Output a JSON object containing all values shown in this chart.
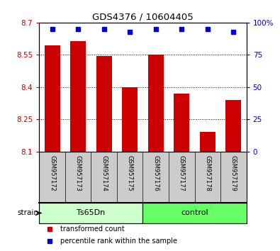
{
  "title": "GDS4376 / 10604405",
  "samples": [
    "GSM957172",
    "GSM957173",
    "GSM957174",
    "GSM957175",
    "GSM957176",
    "GSM957177",
    "GSM957178",
    "GSM957179"
  ],
  "red_values": [
    8.595,
    8.615,
    8.545,
    8.4,
    8.55,
    8.37,
    8.19,
    8.34
  ],
  "blue_values": [
    95,
    95,
    95,
    93,
    95,
    95,
    95,
    93
  ],
  "ylim_left": [
    8.1,
    8.7
  ],
  "ylim_right": [
    0,
    100
  ],
  "yticks_left": [
    8.1,
    8.25,
    8.4,
    8.55,
    8.7
  ],
  "yticks_right": [
    0,
    25,
    50,
    75,
    100
  ],
  "ytick_labels_left": [
    "8.1",
    "8.25",
    "8.4",
    "8.55",
    "8.7"
  ],
  "ytick_labels_right": [
    "0",
    "25",
    "50",
    "75",
    "100%"
  ],
  "bar_color": "#cc0000",
  "dot_color": "#0000cc",
  "group1_label": "Ts65Dn",
  "group2_label": "control",
  "group1_color": "#ccffcc",
  "group2_color": "#66ff66",
  "group_label_row": "strain",
  "sample_bg_color": "#cccccc",
  "legend_red": "transformed count",
  "legend_blue": "percentile rank within the sample",
  "bar_width": 0.6,
  "ybaseline": 8.1
}
